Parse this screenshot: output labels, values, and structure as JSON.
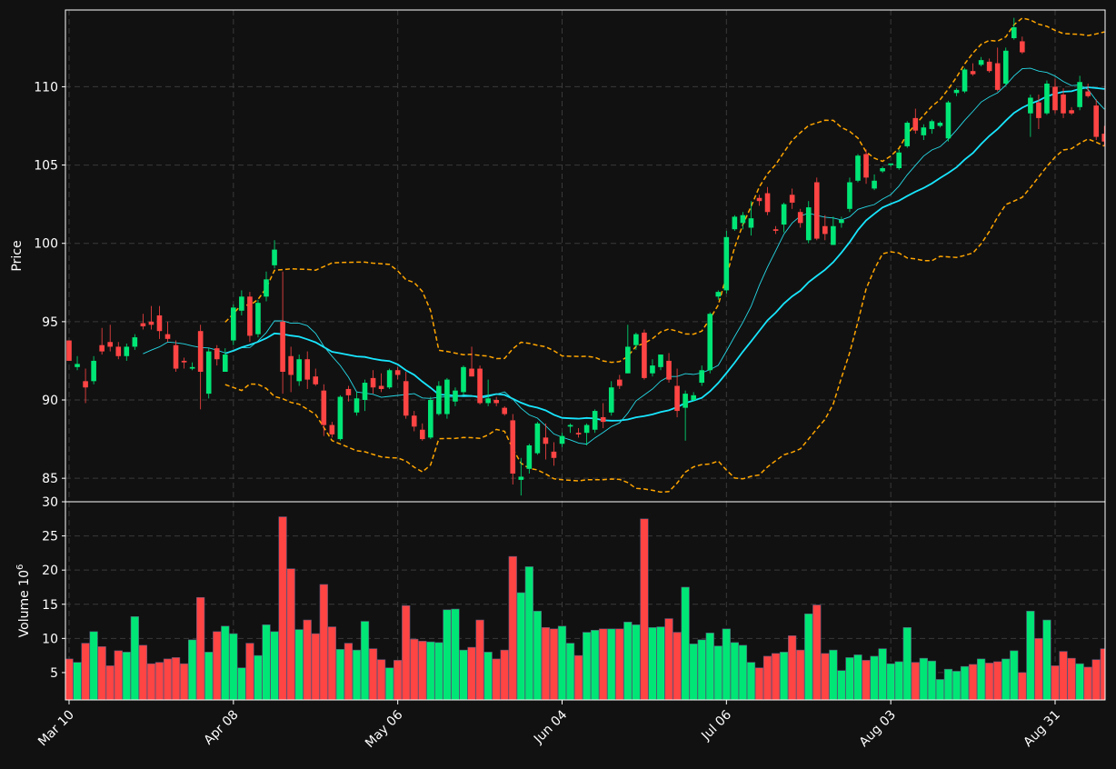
{
  "colors": {
    "background": "#111111",
    "up": "#00e676",
    "down": "#ff4444",
    "ma_fast": "#26d9e6",
    "ma_slow": "#18e6ff",
    "bollinger": "#ffa500",
    "grid": "#3a3a3a",
    "axis": "#ffffff"
  },
  "chart_data": {
    "type": "candlestick",
    "grid": true,
    "price_panel": {
      "ylabel": "Price",
      "ylim": [
        83.5,
        114.9
      ],
      "yticks": [
        85,
        90,
        95,
        100,
        105,
        110
      ]
    },
    "volume_panel": {
      "ylabel": "Volume",
      "ylabel_exponent": "6",
      "unit": "10^6",
      "ylim": [
        1,
        30
      ],
      "yticks": [
        5,
        10,
        15,
        20,
        25,
        30
      ]
    },
    "x_tick_labels": [
      {
        "label": "Mar 10",
        "index": 0
      },
      {
        "label": "Apr 08",
        "index": 20
      },
      {
        "label": "May 06",
        "index": 40
      },
      {
        "label": "Jun 04",
        "index": 60
      },
      {
        "label": "Jul 06",
        "index": 80
      },
      {
        "label": "Aug 03",
        "index": 100
      },
      {
        "label": "Aug 31",
        "index": 120
      }
    ],
    "bollinger_start": 19,
    "ma_fast_start": 9,
    "ma_slow_start": 19,
    "candles": [
      [
        93.8,
        93.8,
        92.5,
        92.5,
        7
      ],
      [
        92.1,
        92.8,
        91.9,
        92.3,
        6.5
      ],
      [
        91.2,
        92.0,
        89.8,
        90.8,
        9.3
      ],
      [
        91.2,
        92.8,
        91.0,
        92.5,
        11
      ],
      [
        93.5,
        94.6,
        92.9,
        93.1,
        8.8
      ],
      [
        93.7,
        94.8,
        93.1,
        93.4,
        6
      ],
      [
        93.4,
        93.7,
        92.6,
        92.8,
        8.2
      ],
      [
        92.8,
        93.6,
        92.5,
        93.4,
        8
      ],
      [
        93.4,
        94.2,
        93.2,
        94.0,
        13.2
      ],
      [
        94.9,
        95.5,
        94.5,
        94.7,
        9
      ],
      [
        95.0,
        96.0,
        94.5,
        94.8,
        6.3
      ],
      [
        95.4,
        96.0,
        93.9,
        94.4,
        6.5
      ],
      [
        94.2,
        95.0,
        93.7,
        93.9,
        7
      ],
      [
        93.5,
        93.8,
        91.8,
        92.0,
        7.2
      ],
      [
        92.5,
        92.7,
        92.0,
        92.4,
        6.3
      ],
      [
        92.0,
        92.4,
        91.9,
        92.1,
        9.8
      ],
      [
        94.4,
        94.8,
        89.4,
        91.8,
        16
      ],
      [
        90.4,
        93.3,
        90.1,
        93.1,
        8
      ],
      [
        93.3,
        93.5,
        92.2,
        92.6,
        11
      ],
      [
        91.8,
        93.3,
        91.8,
        92.9,
        11.8
      ],
      [
        93.8,
        96.1,
        93.5,
        95.9,
        10.7
      ],
      [
        95.7,
        97.0,
        95.4,
        96.6,
        5.7
      ],
      [
        96.6,
        96.9,
        93.7,
        94.1,
        9.3
      ],
      [
        94.2,
        96.4,
        94.0,
        96.2,
        7.5
      ],
      [
        96.6,
        98.2,
        96.3,
        97.7,
        12
      ],
      [
        98.6,
        100.2,
        98.4,
        99.6,
        11
      ],
      [
        95.0,
        98.2,
        90.4,
        91.8,
        27.8
      ],
      [
        92.8,
        93.4,
        90.5,
        91.6,
        20.2
      ],
      [
        91.2,
        92.9,
        90.9,
        92.6,
        11.3
      ],
      [
        92.6,
        93.1,
        90.7,
        91.3,
        12.7
      ],
      [
        91.5,
        92.0,
        90.9,
        91.0,
        10.7
      ],
      [
        90.6,
        91.0,
        87.7,
        88.4,
        17.9
      ],
      [
        88.4,
        88.6,
        87.6,
        87.8,
        11.7
      ],
      [
        87.5,
        90.3,
        87.4,
        90.2,
        8.4
      ],
      [
        90.7,
        90.9,
        89.9,
        90.3,
        9.3
      ],
      [
        89.2,
        90.5,
        89.0,
        90.1,
        8.3
      ],
      [
        90.0,
        91.3,
        89.3,
        91.1,
        12.5
      ],
      [
        91.4,
        91.9,
        90.4,
        90.8,
        8.5
      ],
      [
        90.9,
        91.7,
        90.5,
        90.7,
        6.9
      ],
      [
        90.8,
        92.0,
        90.7,
        91.9,
        5.7
      ],
      [
        91.9,
        92.1,
        91.3,
        91.6,
        6.8
      ],
      [
        91.2,
        91.8,
        88.8,
        89.0,
        14.8
      ],
      [
        89.0,
        89.3,
        88.0,
        88.3,
        9.9
      ],
      [
        88.1,
        88.5,
        87.4,
        87.5,
        9.6
      ],
      [
        87.6,
        90.2,
        87.5,
        90.0,
        9.5
      ],
      [
        89.1,
        91.2,
        89.0,
        90.9,
        9.4
      ],
      [
        89.1,
        91.4,
        88.8,
        91.3,
        14.2
      ],
      [
        89.9,
        90.8,
        89.6,
        90.6,
        14.3
      ],
      [
        90.5,
        92.2,
        90.3,
        92.1,
        8.3
      ],
      [
        92.0,
        93.4,
        91.5,
        91.5,
        8.7
      ],
      [
        92.0,
        92.2,
        89.7,
        89.8,
        12.7
      ],
      [
        89.8,
        91.3,
        89.6,
        90.1,
        8
      ],
      [
        90.0,
        90.2,
        89.6,
        89.8,
        7
      ],
      [
        89.5,
        89.6,
        89.0,
        89.1,
        8.3
      ],
      [
        88.7,
        89.1,
        84.6,
        85.3,
        22
      ],
      [
        84.9,
        86.3,
        83.9,
        85.1,
        16.7
      ],
      [
        85.6,
        87.2,
        85.3,
        87.1,
        20.5
      ],
      [
        86.6,
        88.6,
        86.5,
        88.5,
        14
      ],
      [
        87.6,
        88.5,
        86.2,
        87.2,
        11.6
      ],
      [
        86.7,
        87.3,
        85.8,
        86.3,
        11.4
      ],
      [
        87.2,
        87.9,
        87.0,
        87.7,
        11.8
      ],
      [
        88.3,
        88.5,
        87.9,
        88.4,
        9.3
      ],
      [
        87.9,
        88.2,
        87.6,
        87.8,
        7.5
      ],
      [
        87.9,
        88.5,
        87.1,
        88.4,
        10.9
      ],
      [
        88.1,
        89.4,
        87.9,
        89.3,
        11.2
      ],
      [
        88.9,
        89.8,
        88.2,
        88.6,
        11.4
      ],
      [
        89.2,
        91.2,
        89.0,
        90.8,
        11.4
      ],
      [
        91.3,
        91.6,
        90.7,
        90.9,
        11.4
      ],
      [
        91.7,
        94.8,
        91.7,
        93.4,
        12.4
      ],
      [
        93.5,
        94.3,
        93.2,
        94.2,
        12
      ],
      [
        94.3,
        94.5,
        91.3,
        91.4,
        27.5
      ],
      [
        91.7,
        92.6,
        91.5,
        92.2,
        11.6
      ],
      [
        92.1,
        92.9,
        91.9,
        92.9,
        11.7
      ],
      [
        92.5,
        93.0,
        91.1,
        91.3,
        12.9
      ],
      [
        90.9,
        92.0,
        88.9,
        89.3,
        10.9
      ],
      [
        89.5,
        90.6,
        87.4,
        90.4,
        17.5
      ],
      [
        90.0,
        90.5,
        89.9,
        90.3,
        9.2
      ],
      [
        91.1,
        92.2,
        90.9,
        91.9,
        9.8
      ],
      [
        91.9,
        95.6,
        91.7,
        95.5,
        10.8
      ],
      [
        96.6,
        97.0,
        96.4,
        96.9,
        8.9
      ],
      [
        97.0,
        100.8,
        96.8,
        100.4,
        11.4
      ],
      [
        100.9,
        101.8,
        100.8,
        101.7,
        9.4
      ],
      [
        101.3,
        102.0,
        100.9,
        101.8,
        9
      ],
      [
        101.0,
        102.7,
        100.5,
        101.6,
        6.5
      ],
      [
        102.9,
        103.1,
        102.4,
        102.7,
        5.7
      ],
      [
        103.2,
        103.6,
        101.8,
        102.0,
        7.4
      ],
      [
        100.9,
        101.1,
        100.6,
        100.8,
        7.8
      ],
      [
        101.2,
        102.6,
        100.7,
        102.5,
        8
      ],
      [
        103.1,
        103.5,
        102.2,
        102.6,
        10.4
      ],
      [
        102.0,
        102.2,
        101.0,
        101.3,
        8.3
      ],
      [
        100.2,
        102.7,
        100.0,
        102.3,
        13.6
      ],
      [
        103.9,
        104.2,
        100.2,
        100.3,
        14.9
      ],
      [
        101.1,
        101.8,
        100.2,
        100.6,
        7.8
      ],
      [
        99.9,
        101.7,
        99.9,
        101.1,
        8.3
      ],
      [
        101.3,
        101.7,
        101.0,
        101.5,
        5.3
      ],
      [
        102.2,
        104.2,
        102.0,
        103.9,
        7.2
      ],
      [
        104.0,
        105.7,
        103.9,
        105.6,
        7.6
      ],
      [
        105.7,
        106.0,
        103.8,
        104.2,
        6.8
      ],
      [
        103.5,
        104.4,
        103.4,
        104.0,
        7.4
      ],
      [
        104.6,
        104.9,
        104.5,
        104.8,
        8.5
      ],
      [
        105.0,
        105.1,
        104.9,
        105.1,
        6.3
      ],
      [
        104.8,
        106.0,
        104.7,
        105.8,
        6.6
      ],
      [
        106.2,
        107.8,
        106.1,
        107.7,
        11.6
      ],
      [
        108.0,
        108.6,
        107.0,
        107.2,
        6.5
      ],
      [
        106.9,
        107.6,
        106.6,
        107.4,
        7.1
      ],
      [
        107.3,
        107.9,
        107.0,
        107.8,
        6.7
      ],
      [
        107.5,
        107.8,
        107.4,
        107.7,
        4
      ],
      [
        106.7,
        109.1,
        106.5,
        109.0,
        5.5
      ],
      [
        109.6,
        109.9,
        109.4,
        109.8,
        5.2
      ],
      [
        109.7,
        111.2,
        109.6,
        111.1,
        5.9
      ],
      [
        111.0,
        111.5,
        110.7,
        110.8,
        6.2
      ],
      [
        111.4,
        111.9,
        111.3,
        111.7,
        7
      ],
      [
        111.6,
        111.8,
        110.9,
        111.0,
        6.4
      ],
      [
        111.5,
        112.5,
        109.7,
        109.8,
        6.6
      ],
      [
        110.2,
        112.5,
        110.1,
        112.3,
        7
      ],
      [
        113.1,
        114.4,
        113.0,
        113.8,
        8.2
      ],
      [
        112.9,
        113.2,
        112.1,
        112.2,
        5
      ],
      [
        108.3,
        109.5,
        106.8,
        109.3,
        14
      ],
      [
        109.0,
        109.5,
        107.3,
        108.0,
        10
      ],
      [
        108.3,
        110.4,
        108.2,
        110.2,
        12.7
      ],
      [
        110.0,
        110.5,
        108.3,
        108.5,
        6
      ],
      [
        109.5,
        109.9,
        108.0,
        108.3,
        8.1
      ],
      [
        108.5,
        108.7,
        108.2,
        108.3,
        7.1
      ],
      [
        108.7,
        110.7,
        108.5,
        110.3,
        6.3
      ],
      [
        109.7,
        110.2,
        109.3,
        109.4,
        5.8
      ],
      [
        108.8,
        109.2,
        106.6,
        106.8,
        6.9
      ],
      [
        107.0,
        107.5,
        106.2,
        106.5,
        8.5
      ]
    ]
  }
}
